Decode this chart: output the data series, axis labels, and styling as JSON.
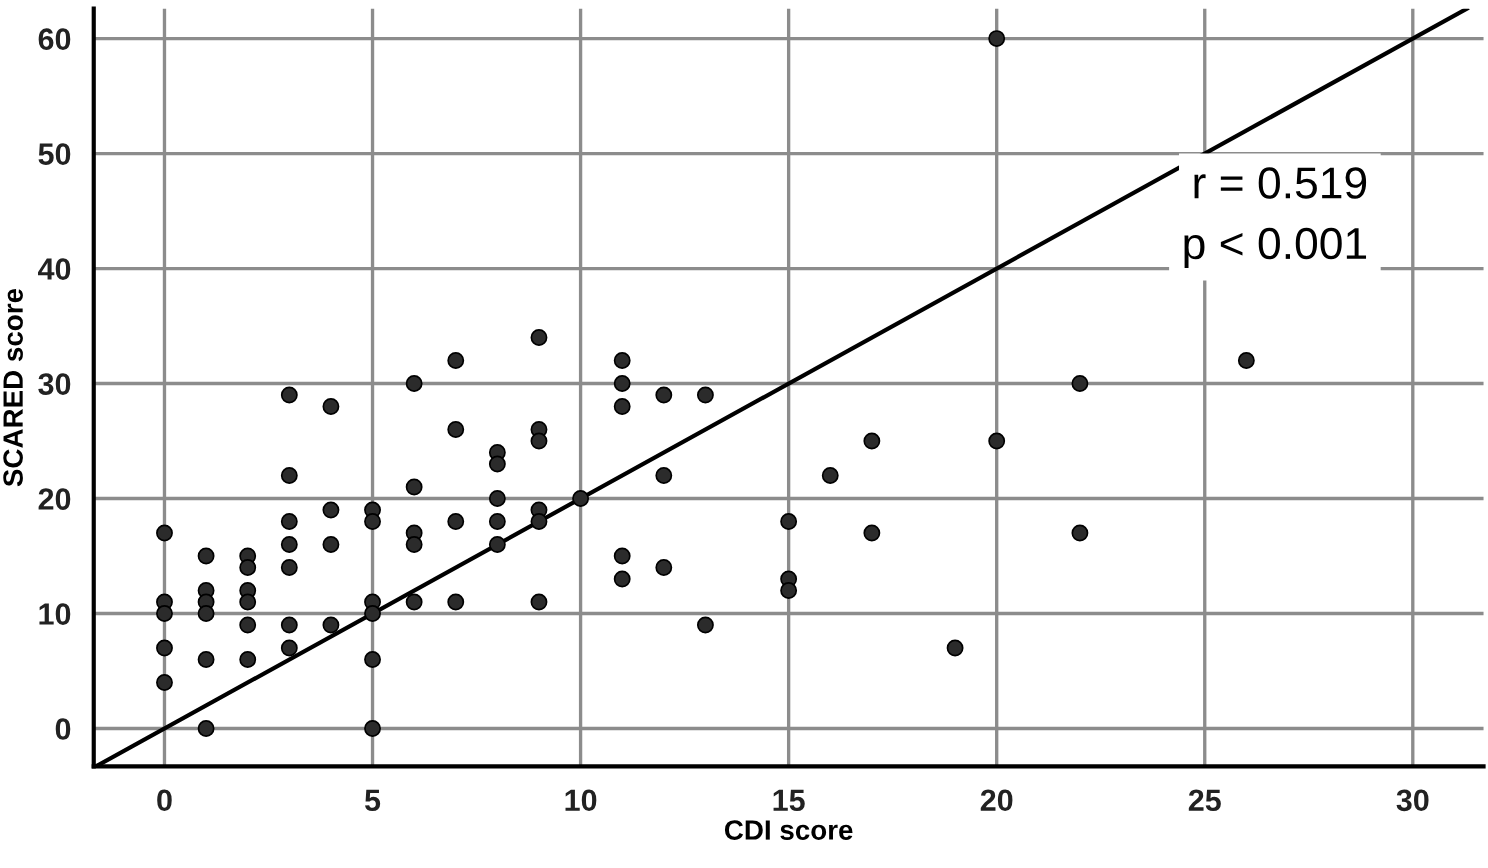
{
  "chart_data": {
    "type": "scatter",
    "xlabel": "CDI score",
    "ylabel": "SCARED score",
    "xlim": [
      -1.7,
      31.7
    ],
    "ylim": [
      -3.3,
      62.6
    ],
    "xticks": [
      0,
      5,
      10,
      15,
      20,
      25,
      30
    ],
    "yticks": [
      0,
      10,
      20,
      30,
      40,
      50,
      60
    ],
    "grid": true,
    "marker": "circle",
    "annotations": [
      "r = 0.519",
      "p < 0.001"
    ],
    "series": [
      {
        "color": "#2b2b2b",
        "x": [
          0,
          0,
          0,
          0,
          0,
          1,
          1,
          1,
          1,
          1,
          1,
          2,
          2,
          2,
          2,
          2,
          2,
          3,
          3,
          3,
          3,
          3,
          3,
          3,
          4,
          4,
          4,
          4,
          5,
          5,
          5,
          5,
          5,
          5,
          6,
          6,
          6,
          6,
          6,
          7,
          7,
          7,
          7,
          8,
          8,
          8,
          8,
          8,
          9,
          9,
          9,
          9,
          9,
          9,
          10,
          11,
          11,
          11,
          11,
          11,
          12,
          12,
          12,
          13,
          13,
          15,
          15,
          15,
          16,
          17,
          17,
          19,
          20,
          20,
          22,
          22,
          26
        ],
        "values": [
          17,
          11,
          10,
          7,
          4,
          15,
          12,
          11,
          10,
          6,
          0,
          15,
          14,
          12,
          11,
          9,
          6,
          29,
          22,
          18,
          16,
          14,
          9,
          7,
          28,
          19,
          16,
          9,
          19,
          18,
          11,
          10,
          6,
          0,
          30,
          21,
          17,
          16,
          11,
          32,
          26,
          18,
          11,
          24,
          23,
          20,
          18,
          16,
          34,
          26,
          25,
          19,
          18,
          11,
          20,
          32,
          30,
          28,
          15,
          13,
          29,
          22,
          14,
          29,
          9,
          18,
          13,
          12,
          22,
          25,
          17,
          7,
          60,
          25,
          30,
          17,
          32
        ]
      },
      {
        "type": "line",
        "color": "#000000",
        "marker": "none",
        "x": [
          -1.65,
          31.3
        ],
        "values": [
          -3.3,
          62.6
        ]
      }
    ]
  }
}
